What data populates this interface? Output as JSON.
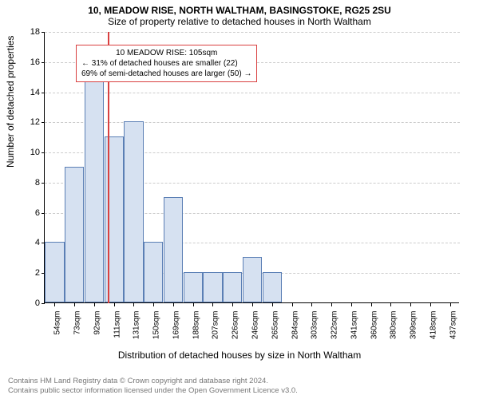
{
  "title_main": "10, MEADOW RISE, NORTH WALTHAM, BASINGSTOKE, RG25 2SU",
  "title_sub": "Size of property relative to detached houses in North Waltham",
  "y_axis_label": "Number of detached properties",
  "x_axis_label": "Distribution of detached houses by size in North Waltham",
  "chart": {
    "type": "histogram",
    "ylim": [
      0,
      18
    ],
    "ytick_step": 2,
    "bar_fill": "#d6e1f1",
    "bar_border": "#5b7fb5",
    "grid_color": "#cccccc",
    "background": "#ffffff",
    "categories": [
      "54sqm",
      "73sqm",
      "92sqm",
      "111sqm",
      "131sqm",
      "150sqm",
      "169sqm",
      "188sqm",
      "207sqm",
      "226sqm",
      "246sqm",
      "265sqm",
      "284sqm",
      "303sqm",
      "322sqm",
      "341sqm",
      "360sqm",
      "380sqm",
      "399sqm",
      "418sqm",
      "437sqm"
    ],
    "values": [
      4,
      9,
      16,
      11,
      12,
      4,
      7,
      2,
      2,
      2,
      3,
      2,
      0,
      0,
      0,
      0,
      0,
      0,
      0,
      0,
      0
    ],
    "marker": {
      "position_index": 2.7,
      "color": "#d94040"
    },
    "callout": {
      "line1": "10 MEADOW RISE: 105sqm",
      "line2": "← 31% of detached houses are smaller (22)",
      "line3": "69% of semi-detached houses are larger (50) →",
      "border_color": "#d94040"
    }
  },
  "footer": {
    "line1": "Contains HM Land Registry data © Crown copyright and database right 2024.",
    "line2": "Contains public sector information licensed under the Open Government Licence v3.0."
  }
}
